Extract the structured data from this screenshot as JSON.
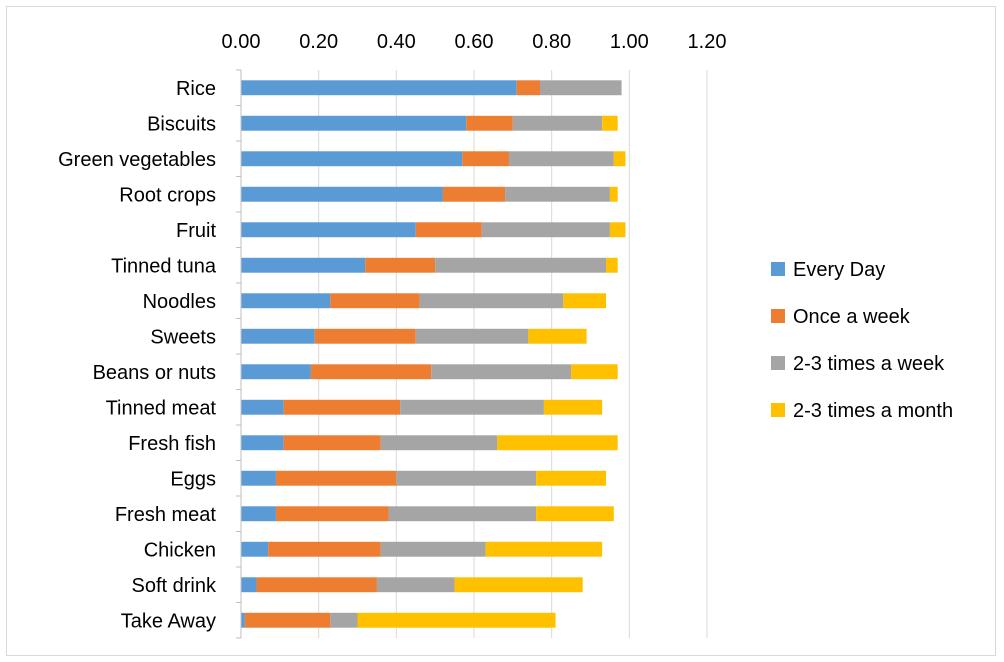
{
  "chart_data": {
    "type": "bar",
    "orientation": "horizontal",
    "stacked": true,
    "title": "",
    "xlabel": "",
    "ylabel": "",
    "xlim": [
      0,
      1.2
    ],
    "x_axis_position": "top",
    "x_ticks": [
      "0.00",
      "0.20",
      "0.40",
      "0.60",
      "0.80",
      "1.00",
      "1.20"
    ],
    "grid": true,
    "legend_position": "right",
    "categories": [
      "Rice",
      "Biscuits",
      "Green vegetables",
      "Root crops",
      "Fruit",
      "Tinned tuna",
      "Noodles",
      "Sweets",
      "Beans or nuts",
      "Tinned meat",
      "Fresh fish",
      "Eggs",
      "Fresh meat",
      "Chicken",
      "Soft drink",
      "Take Away"
    ],
    "series": [
      {
        "name": "Every Day",
        "color": "#5b9bd5",
        "values": [
          0.71,
          0.58,
          0.57,
          0.52,
          0.45,
          0.32,
          0.23,
          0.19,
          0.18,
          0.11,
          0.11,
          0.09,
          0.09,
          0.07,
          0.04,
          0.01
        ]
      },
      {
        "name": "Once a week",
        "color": "#ed7d31",
        "values": [
          0.06,
          0.12,
          0.12,
          0.16,
          0.17,
          0.18,
          0.23,
          0.26,
          0.31,
          0.3,
          0.25,
          0.31,
          0.29,
          0.29,
          0.31,
          0.22
        ]
      },
      {
        "name": "2-3 times a week",
        "color": "#a5a5a5",
        "values": [
          0.21,
          0.23,
          0.27,
          0.27,
          0.33,
          0.44,
          0.37,
          0.29,
          0.36,
          0.37,
          0.3,
          0.36,
          0.38,
          0.27,
          0.2,
          0.07
        ]
      },
      {
        "name": "2-3 times a month",
        "color": "#ffc000",
        "values": [
          0.0,
          0.04,
          0.03,
          0.02,
          0.04,
          0.03,
          0.11,
          0.15,
          0.12,
          0.15,
          0.31,
          0.18,
          0.2,
          0.3,
          0.33,
          0.51
        ]
      }
    ]
  }
}
